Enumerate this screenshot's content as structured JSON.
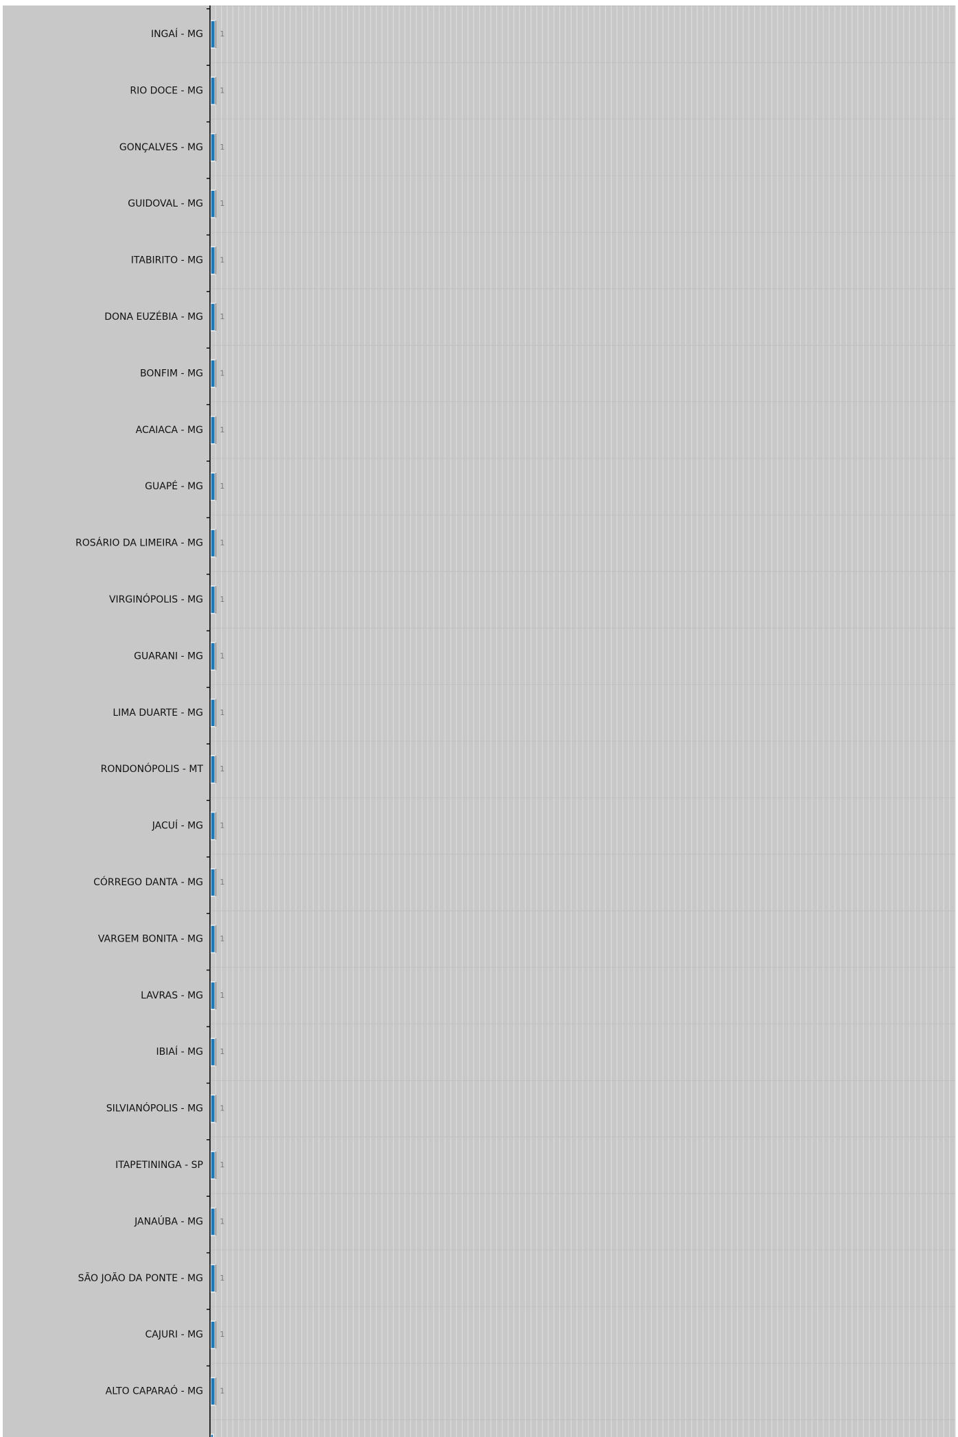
{
  "chart_data": {
    "type": "bar",
    "orientation": "horizontal",
    "categories": [
      "INGAÍ - MG",
      "RIO DOCE - MG",
      "GONÇALVES - MG",
      "GUIDOVAL - MG",
      "ITABIRITO - MG",
      "DONA EUZÉBIA - MG",
      "BONFIM - MG",
      "ACAIACA - MG",
      "GUAPÉ - MG",
      "ROSÁRIO DA LIMEIRA - MG",
      "VIRGINÓPOLIS - MG",
      "GUARANI - MG",
      "LIMA DUARTE - MG",
      "RONDONÓPOLIS - MT",
      "JACUÍ - MG",
      "CÓRREGO DANTA - MG",
      "VARGEM BONITA - MG",
      "LAVRAS - MG",
      "IBIAÍ - MG",
      "SILVIANÓPOLIS - MG",
      "ITAPETININGA - SP",
      "JANAÚBA - MG",
      "SÃO JOÃO DA PONTE - MG",
      "CAJURI - MG",
      "ALTO CAPARAÓ - MG"
    ],
    "values": [
      1,
      1,
      1,
      1,
      1,
      1,
      1,
      1,
      1,
      1,
      1,
      1,
      1,
      1,
      1,
      1,
      1,
      1,
      1,
      1,
      1,
      1,
      1,
      1,
      1
    ],
    "value_labels": [
      "1",
      "1",
      "1",
      "1",
      "1",
      "1",
      "1",
      "1",
      "1",
      "1",
      "1",
      "1",
      "1",
      "1",
      "1",
      "1",
      "1",
      "1",
      "1",
      "1",
      "1",
      "1",
      "1",
      "1",
      "1"
    ],
    "xlim": [
      0,
      130
    ],
    "grid": true,
    "legend": "none",
    "colors": {
      "plot_background": "#c8c8c8",
      "bar_fill": "#1f77b4",
      "bar_edge": "#f2f2f2",
      "grid_line": "#dcdcdc",
      "axis": "#000000"
    }
  }
}
